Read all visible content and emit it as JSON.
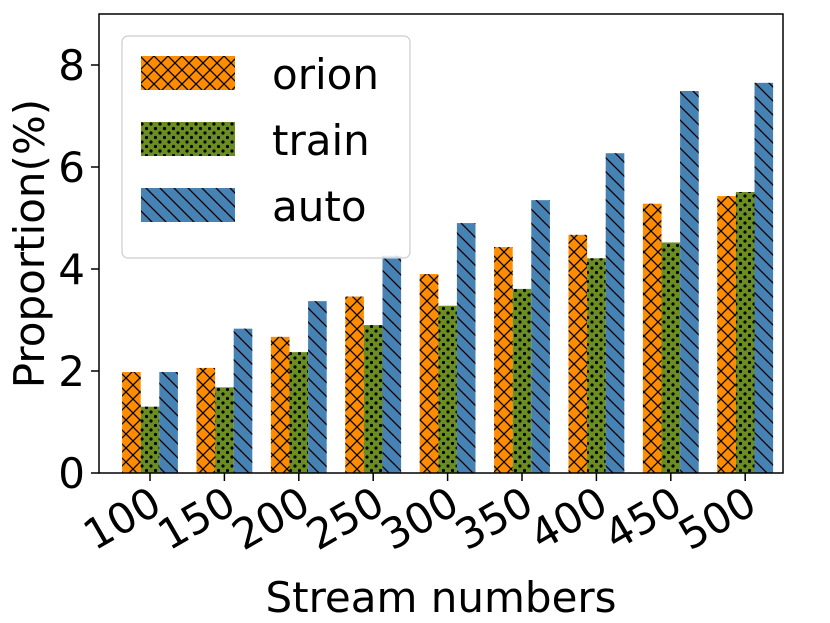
{
  "chart_data": {
    "type": "bar",
    "xlabel": "Stream numbers",
    "ylabel": "Proportion(%)",
    "categories": [
      "100",
      "150",
      "200",
      "250",
      "300",
      "350",
      "400",
      "450",
      "500"
    ],
    "ylim": [
      0,
      9
    ],
    "yticks": [
      "0",
      "2",
      "4",
      "6",
      "8"
    ],
    "grid": false,
    "legend_position": "top-left",
    "series": [
      {
        "name": "orion",
        "color": "#ff8c00",
        "hatch": "cross-hatch",
        "values": [
          1.98,
          2.06,
          2.67,
          3.46,
          3.9,
          4.43,
          4.67,
          5.28,
          5.43
        ]
      },
      {
        "name": "train",
        "color": "#6b8e23",
        "hatch": "dots",
        "values": [
          1.3,
          1.68,
          2.37,
          2.9,
          3.28,
          3.61,
          4.21,
          4.52,
          5.51
        ]
      },
      {
        "name": "auto",
        "color": "#4682b4",
        "hatch": "back-diagonal",
        "values": [
          1.98,
          2.83,
          3.37,
          4.26,
          4.9,
          5.35,
          6.27,
          7.49,
          7.65
        ]
      }
    ]
  }
}
